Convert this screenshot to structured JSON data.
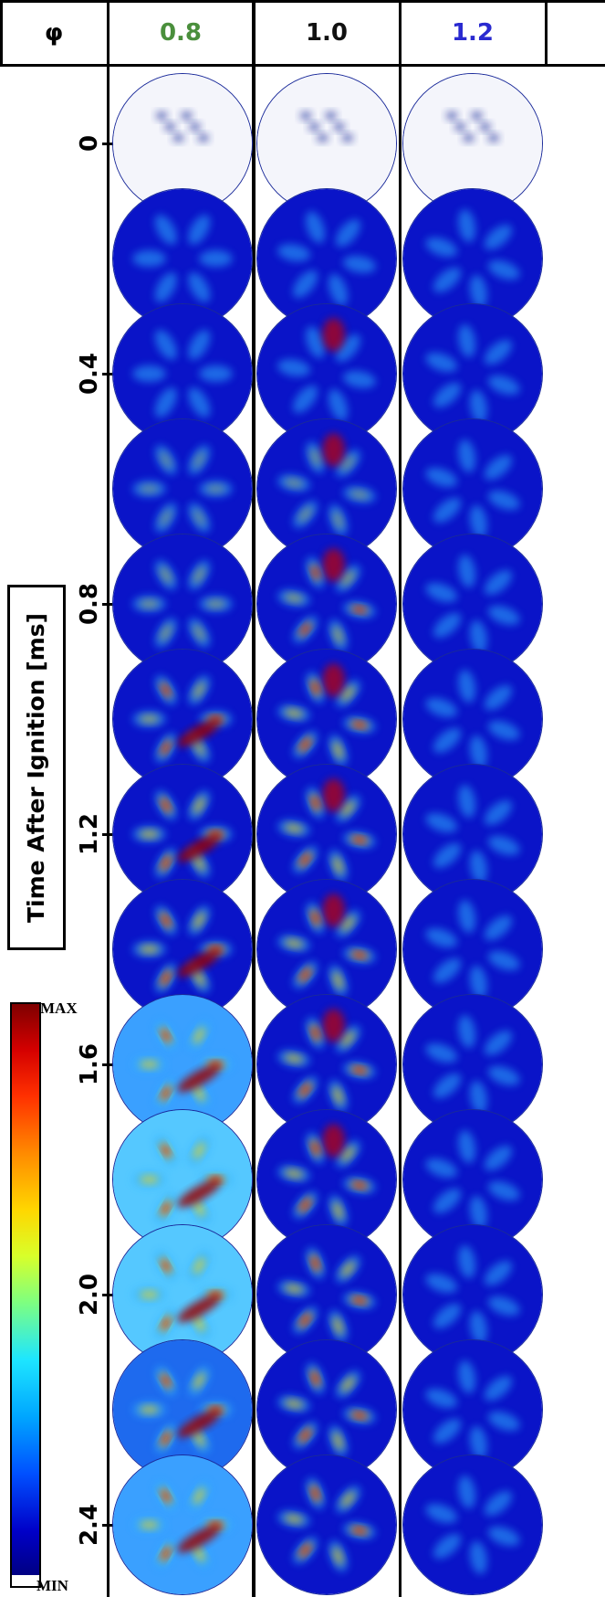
{
  "header": {
    "phi_label": "φ",
    "columns": [
      {
        "label": "0.8",
        "color": "#4a8f3c"
      },
      {
        "label": "1.0",
        "color": "#111111"
      },
      {
        "label": "1.2",
        "color": "#2a2ad0"
      }
    ]
  },
  "axis": {
    "title": "Time After Ignition [ms]",
    "ticks": [
      "0",
      "0.4",
      "0.8",
      "1.2",
      "1.6",
      "2.0",
      "2.4"
    ]
  },
  "colorbar": {
    "max_label": "MAX",
    "min_label": "MIN"
  },
  "frames": {
    "count_per_column": 13,
    "interval_ms": 0.2
  }
}
